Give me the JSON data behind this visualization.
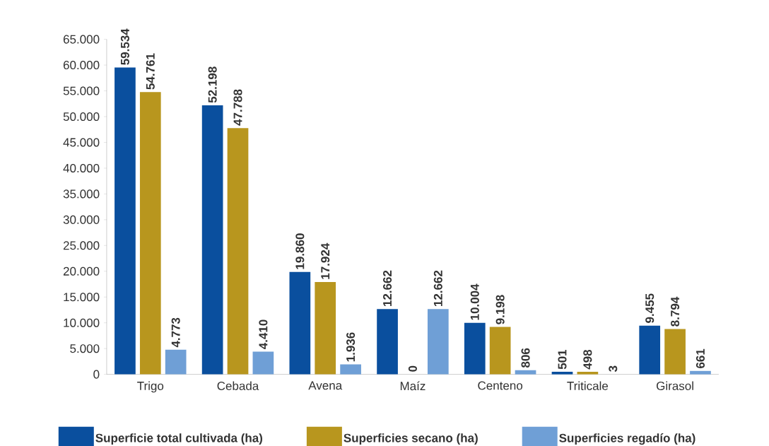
{
  "chart_data": {
    "type": "bar",
    "categories": [
      "Trigo",
      "Cebada",
      "Avena",
      "Maíz",
      "Centeno",
      "Triticale",
      "Girasol"
    ],
    "ylim": [
      0,
      65000
    ],
    "yticks": [
      0,
      {
        "value": 5000,
        "label": "5.000"
      },
      {
        "value": 10000,
        "label": "10.000"
      },
      {
        "value": 15000,
        "label": "15.000"
      },
      {
        "value": 20000,
        "label": "20.000"
      },
      {
        "value": 25000,
        "label": "25.000"
      },
      {
        "value": 30000,
        "label": "30.000"
      },
      {
        "value": 35000,
        "label": "35.000"
      },
      {
        "value": 40000,
        "label": "40.000"
      },
      {
        "value": 45000,
        "label": "45.000"
      },
      {
        "value": 50000,
        "label": "50.000"
      },
      {
        "value": 55000,
        "label": "55.000"
      },
      {
        "value": 60000,
        "label": "60.000"
      },
      {
        "value": 65000,
        "label": "65.000"
      }
    ],
    "legend": "bottom",
    "series": [
      {
        "name": "Superficie total cultivada (ha)",
        "color": "#0a4f9e",
        "values": [
          59534,
          52198,
          19860,
          12662,
          10004,
          501,
          9455
        ],
        "value_labels": [
          "59.534",
          "52.198",
          "19.860",
          "12.662",
          "10.004",
          "501",
          "9.455"
        ]
      },
      {
        "name": "Superficies secano (ha)",
        "color": "#b8961e",
        "values": [
          54761,
          47788,
          17924,
          0,
          9198,
          498,
          8794
        ],
        "value_labels": [
          "54.761",
          "47.788",
          "17.924",
          "0",
          "9.198",
          "498",
          "8.794"
        ]
      },
      {
        "name": "Superficies regadío (ha)",
        "color": "#6f9fd6",
        "values": [
          4773,
          4410,
          1936,
          12662,
          806,
          3,
          661
        ],
        "value_labels": [
          "4.773",
          "4.410",
          "1.936",
          "12.662",
          "806",
          "3",
          "661"
        ]
      }
    ]
  }
}
